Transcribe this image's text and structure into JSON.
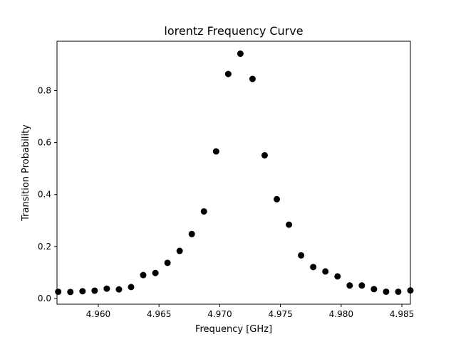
{
  "chart_data": {
    "type": "scatter",
    "title": "lorentz Frequency Curve",
    "xlabel": "Frequency [GHz]",
    "ylabel": "Transition Probability",
    "xlim": [
      4.9566,
      4.9857
    ],
    "ylim": [
      -0.022,
      0.99
    ],
    "grid": false,
    "legend": "none",
    "marker_color": "#000000",
    "xticks": [
      4.96,
      4.965,
      4.97,
      4.975,
      4.98,
      4.985
    ],
    "xtick_labels": [
      "4.960",
      "4.965",
      "4.970",
      "4.975",
      "4.980",
      "4.985"
    ],
    "yticks": [
      0.0,
      0.2,
      0.4,
      0.6,
      0.8
    ],
    "ytick_labels": [
      "0.0",
      "0.2",
      "0.4",
      "0.6",
      "0.8"
    ],
    "x": [
      4.9567,
      4.9577,
      4.9587,
      4.9597,
      4.9607,
      4.9617,
      4.9627,
      4.9637,
      4.9647,
      4.9657,
      4.9667,
      4.9677,
      4.9687,
      4.9697,
      4.9707,
      4.9717,
      4.9727,
      4.9737,
      4.9747,
      4.9757,
      4.9767,
      4.9777,
      4.9787,
      4.9797,
      4.9807,
      4.9817,
      4.9827,
      4.9837,
      4.9847,
      4.9857
    ],
    "y": [
      0.026,
      0.025,
      0.028,
      0.03,
      0.038,
      0.035,
      0.044,
      0.09,
      0.098,
      0.137,
      0.183,
      0.248,
      0.335,
      0.566,
      0.864,
      0.942,
      0.845,
      0.551,
      0.382,
      0.284,
      0.166,
      0.121,
      0.104,
      0.085,
      0.05,
      0.05,
      0.036,
      0.026,
      0.026,
      0.031
    ]
  }
}
